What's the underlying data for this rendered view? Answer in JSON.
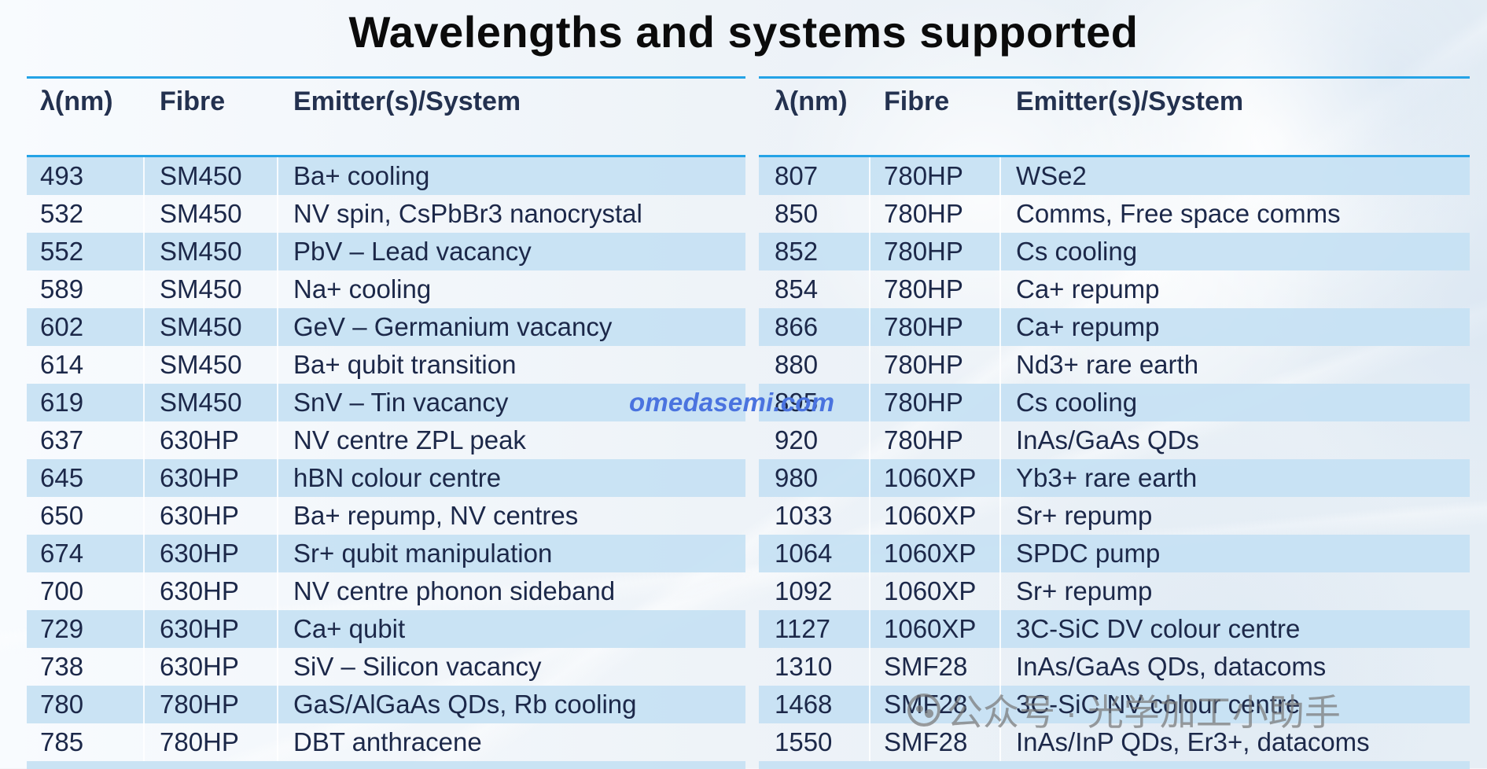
{
  "page": {
    "title": "Wavelengths and systems supported",
    "watermark_domain": "omedasemi.com",
    "watermark_channel": "公众号 · 光学加工小助手",
    "watermark_icon": "wechat-icon",
    "colors": {
      "accent": "#24a3e6",
      "row_alt": "#c6e1f3",
      "text": "#1c2849",
      "title": "#0b0b0b",
      "watermark_blue": "#4a73df",
      "watermark_gray": "#787878"
    }
  },
  "tables": {
    "left": {
      "headers": [
        "λ(nm)",
        "Fibre",
        "Emitter(s)/System"
      ],
      "rows": [
        {
          "wavelength": "493",
          "fibre": "SM450",
          "system": "Ba+ cooling"
        },
        {
          "wavelength": "532",
          "fibre": "SM450",
          "system": "NV spin, CsPbBr3 nanocrystal"
        },
        {
          "wavelength": "552",
          "fibre": "SM450",
          "system": "PbV – Lead vacancy"
        },
        {
          "wavelength": "589",
          "fibre": "SM450",
          "system": "Na+ cooling"
        },
        {
          "wavelength": "602",
          "fibre": "SM450",
          "system": "GeV – Germanium vacancy"
        },
        {
          "wavelength": "614",
          "fibre": "SM450",
          "system": "Ba+ qubit transition"
        },
        {
          "wavelength": "619",
          "fibre": "SM450",
          "system": "SnV – Tin vacancy"
        },
        {
          "wavelength": "637",
          "fibre": "630HP",
          "system": "NV centre ZPL peak"
        },
        {
          "wavelength": "645",
          "fibre": "630HP",
          "system": "hBN colour centre"
        },
        {
          "wavelength": "650",
          "fibre": "630HP",
          "system": "Ba+ repump, NV centres"
        },
        {
          "wavelength": "674",
          "fibre": "630HP",
          "system": "Sr+ qubit manipulation"
        },
        {
          "wavelength": "700",
          "fibre": "630HP",
          "system": "NV centre phonon sideband"
        },
        {
          "wavelength": "729",
          "fibre": "630HP",
          "system": "Ca+ qubit"
        },
        {
          "wavelength": "738",
          "fibre": "630HP",
          "system": "SiV – Silicon vacancy"
        },
        {
          "wavelength": "780",
          "fibre": "780HP",
          "system": "GaS/AlGaAs QDs, Rb cooling"
        },
        {
          "wavelength": "785",
          "fibre": "780HP",
          "system": "DBT anthracene"
        }
      ]
    },
    "right": {
      "headers": [
        "λ(nm)",
        "Fibre",
        "Emitter(s)/System"
      ],
      "rows": [
        {
          "wavelength": "807",
          "fibre": "780HP",
          "system": "WSe2"
        },
        {
          "wavelength": "850",
          "fibre": "780HP",
          "system": "Comms, Free space comms"
        },
        {
          "wavelength": "852",
          "fibre": "780HP",
          "system": "Cs cooling"
        },
        {
          "wavelength": "854",
          "fibre": "780HP",
          "system": "Ca+ repump"
        },
        {
          "wavelength": "866",
          "fibre": "780HP",
          "system": "Ca+ repump"
        },
        {
          "wavelength": "880",
          "fibre": "780HP",
          "system": "Nd3+ rare earth"
        },
        {
          "wavelength": "895",
          "fibre": "780HP",
          "system": "Cs cooling"
        },
        {
          "wavelength": "920",
          "fibre": "780HP",
          "system": "InAs/GaAs QDs"
        },
        {
          "wavelength": "980",
          "fibre": "1060XP",
          "system": "Yb3+ rare earth"
        },
        {
          "wavelength": "1033",
          "fibre": "1060XP",
          "system": "Sr+ repump"
        },
        {
          "wavelength": "1064",
          "fibre": "1060XP",
          "system": "SPDC pump"
        },
        {
          "wavelength": "1092",
          "fibre": "1060XP",
          "system": "Sr+ repump"
        },
        {
          "wavelength": "1127",
          "fibre": "1060XP",
          "system": "3C-SiC DV colour centre"
        },
        {
          "wavelength": "1310",
          "fibre": "SMF28",
          "system": "InAs/GaAs QDs, datacoms"
        },
        {
          "wavelength": "1468",
          "fibre": "SMF28",
          "system": "3C-SiC NV colour centre"
        },
        {
          "wavelength": "1550",
          "fibre": "SMF28",
          "system": "InAs/InP QDs, Er3+, datacoms"
        }
      ]
    }
  }
}
